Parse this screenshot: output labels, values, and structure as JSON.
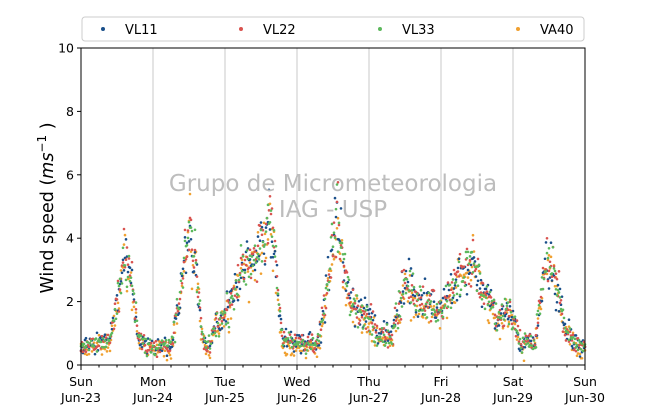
{
  "chart_data": {
    "type": "scatter",
    "ylabel": "Wind speed (ms⁻¹)",
    "ylabel_parts": {
      "prefix": "Wind speed (",
      "unit": "ms",
      "exponent": "−1",
      "suffix": " )"
    },
    "ylim": [
      0,
      10
    ],
    "yticks": [
      "0",
      "2",
      "4",
      "6",
      "8",
      "10"
    ],
    "xlim": [
      "2019-06-23",
      "2019-06-30"
    ],
    "xticks": [
      {
        "day": "Sun",
        "date": "Jun-23"
      },
      {
        "day": "Mon",
        "date": "Jun-24"
      },
      {
        "day": "Tue",
        "date": "Jun-25"
      },
      {
        "day": "Wed",
        "date": "Jun-26"
      },
      {
        "day": "Thu",
        "date": "Jun-27"
      },
      {
        "day": "Fri",
        "date": "Jun-28"
      },
      {
        "day": "Sat",
        "date": "Jun-29"
      },
      {
        "day": "Sun",
        "date": "Jun-30"
      }
    ],
    "grid": "vertical at daily ticks",
    "legend_position": "top",
    "watermark": [
      "Grupo de Micrometeorologia",
      "IAG - USP"
    ],
    "series": [
      {
        "name": "VL11",
        "color": "#1a4f8a"
      },
      {
        "name": "VL22",
        "color": "#d9534f"
      },
      {
        "name": "VL33",
        "color": "#5cb85c"
      },
      {
        "name": "VA40",
        "color": "#f0a030"
      }
    ],
    "hourly_wind_speed_profile": {
      "x_unit": "day",
      "x": [
        0.0,
        0.25,
        0.4,
        0.55,
        0.62,
        0.7,
        0.8,
        0.9,
        1.0,
        1.25,
        1.38,
        1.45,
        1.52,
        1.6,
        1.7,
        1.8,
        1.85,
        2.0,
        2.1,
        2.2,
        2.35,
        2.5,
        2.62,
        2.7,
        2.75,
        2.8,
        3.0,
        3.3,
        3.38,
        3.45,
        3.5,
        3.55,
        3.62,
        3.72,
        3.8,
        3.9,
        4.0,
        4.1,
        4.3,
        4.38,
        4.45,
        4.55,
        4.65,
        4.8,
        5.0,
        5.2,
        5.3,
        5.45,
        5.55,
        5.7,
        5.75,
        5.85,
        5.95,
        6.1,
        6.3,
        6.38,
        6.45,
        6.55,
        6.62,
        6.72,
        6.82,
        6.9,
        7.0
      ],
      "y": [
        0.6,
        0.7,
        0.8,
        2.8,
        3.5,
        2.6,
        0.9,
        0.6,
        0.6,
        0.6,
        2.2,
        3.6,
        4.3,
        2.8,
        0.8,
        0.6,
        1.3,
        1.5,
        2.2,
        2.8,
        3.3,
        3.8,
        4.5,
        3.2,
        1.8,
        0.8,
        0.7,
        0.7,
        1.8,
        3.0,
        3.8,
        4.8,
        3.6,
        2.2,
        1.8,
        1.7,
        1.5,
        1.0,
        0.9,
        1.5,
        2.2,
        2.6,
        2.0,
        2.0,
        1.8,
        2.6,
        2.9,
        3.2,
        2.5,
        2.0,
        1.6,
        1.5,
        1.8,
        0.8,
        0.7,
        2.0,
        3.3,
        3.0,
        2.4,
        1.2,
        0.8,
        0.6,
        0.6
      ]
    }
  }
}
